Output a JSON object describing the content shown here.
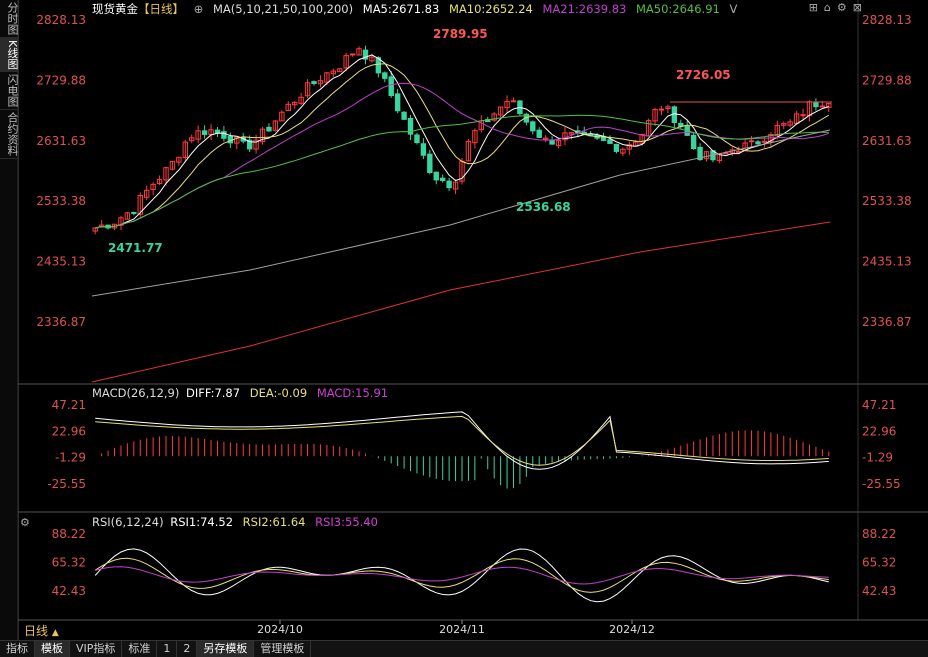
{
  "sidebar": {
    "items": [
      "分时图",
      "K线图",
      "闪电图",
      "合约资料"
    ],
    "active": 1
  },
  "header": {
    "symbol": "现货黄金",
    "period_tag": "【日线】",
    "ma_label": "MA(5,10,21,50,100,200)",
    "ma5": "MA5:2671.83",
    "ma10": "MA10:2652.24",
    "ma21": "MA21:2639.83",
    "ma50": "MA50:2646.91",
    "more": "V"
  },
  "macd_legend": {
    "name": "MACD(26,12,9)",
    "diff": "DIFF:7.87",
    "dea": "DEA:-0.09",
    "macd": "MACD:15.91"
  },
  "rsi_legend": {
    "name": "RSI(6,12,24)",
    "rsi1": "RSI1:74.52",
    "rsi2": "RSI2:61.64",
    "rsi3": "RSI3:55.40"
  },
  "price_axis": [
    "2828.13",
    "2729.88",
    "2631.63",
    "2533.38",
    "2435.13",
    "2336.87"
  ],
  "macd_axis": [
    "47.21",
    "22.96",
    "-1.29",
    "-25.55"
  ],
  "rsi_axis": [
    "88.22",
    "65.32",
    "42.43"
  ],
  "annotations": {
    "high1": "2789.95",
    "high2": "2726.05",
    "low1": "2471.77",
    "low2": "2536.68"
  },
  "date_axis": [
    "2024/10",
    "2024/11",
    "2024/12"
  ],
  "period_selector": "日线",
  "bottom_tabs": [
    "指标",
    "模板",
    "VIP指标",
    "标准",
    "1",
    "2",
    "另存模板",
    "管理模板"
  ],
  "colors": {
    "up": "#ff3b3b",
    "down": "#39d4a0",
    "ma5": "#ffffff",
    "ma10": "#e8e070",
    "ma21": "#c040d0",
    "ma50": "#50c040",
    "ma100": "#a0a0a0",
    "ma200": "#e0303a",
    "axis_text": "#e05050"
  }
}
